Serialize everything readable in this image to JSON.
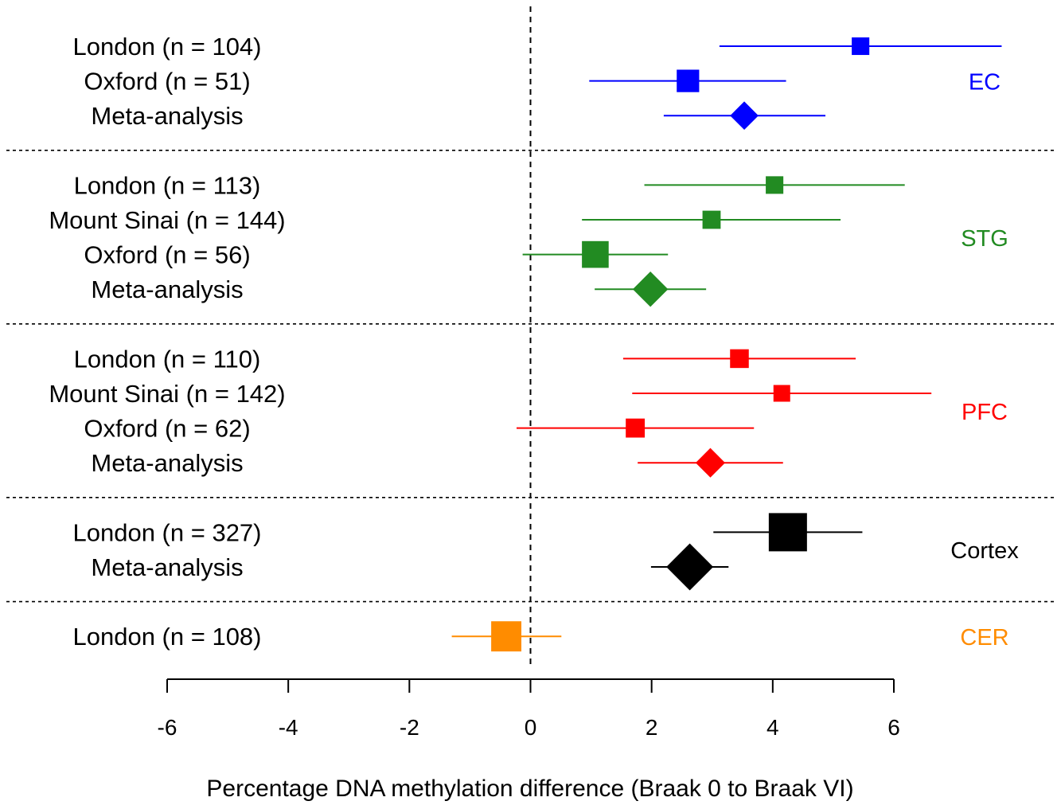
{
  "chart_data": {
    "type": "forest",
    "xlabel": "Percentage DNA methylation difference (Braak 0 to Braak VI)",
    "xlim": [
      -6,
      6
    ],
    "xticks": [
      "-6",
      "-4",
      "-2",
      "0",
      "2",
      "4",
      "6"
    ],
    "reference_line": 0,
    "groups": [
      {
        "region": "EC",
        "color": "#0000ff",
        "rows": [
          {
            "label": "London (n = 104)",
            "estimate": 5.45,
            "lower": 3.12,
            "upper": 7.78,
            "marker": "square",
            "weight": 0.28
          },
          {
            "label": "Oxford (n = 51)",
            "estimate": 2.6,
            "lower": 0.97,
            "upper": 4.22,
            "marker": "square",
            "weight": 0.45
          },
          {
            "label": "Meta-analysis",
            "estimate": 3.53,
            "lower": 2.2,
            "upper": 4.87,
            "marker": "diamond",
            "weight": 0.4
          }
        ]
      },
      {
        "region": "STG",
        "color": "#228b22",
        "rows": [
          {
            "label": "London (n = 113)",
            "estimate": 4.03,
            "lower": 1.88,
            "upper": 6.18,
            "marker": "square",
            "weight": 0.28
          },
          {
            "label": "Mount Sinai (n = 144)",
            "estimate": 2.99,
            "lower": 0.85,
            "upper": 5.12,
            "marker": "square",
            "weight": 0.3
          },
          {
            "label": "Oxford (n = 56)",
            "estimate": 1.07,
            "lower": -0.13,
            "upper": 2.27,
            "marker": "square",
            "weight": 0.6
          },
          {
            "label": "Meta-analysis",
            "estimate": 1.98,
            "lower": 1.06,
            "upper": 2.9,
            "marker": "diamond",
            "weight": 0.58
          }
        ]
      },
      {
        "region": "PFC",
        "color": "#ff0000",
        "rows": [
          {
            "label": "London (n = 110)",
            "estimate": 3.45,
            "lower": 1.53,
            "upper": 5.37,
            "marker": "square",
            "weight": 0.32
          },
          {
            "label": "Mount Sinai (n = 142)",
            "estimate": 4.15,
            "lower": 1.68,
            "upper": 6.62,
            "marker": "square",
            "weight": 0.25
          },
          {
            "label": "Oxford (n = 62)",
            "estimate": 1.73,
            "lower": -0.23,
            "upper": 3.69,
            "marker": "square",
            "weight": 0.33
          },
          {
            "label": "Meta-analysis",
            "estimate": 2.97,
            "lower": 1.77,
            "upper": 4.17,
            "marker": "diamond",
            "weight": 0.43
          }
        ]
      },
      {
        "region": "Cortex",
        "color": "#000000",
        "rows": [
          {
            "label": "London (n = 327)",
            "estimate": 4.25,
            "lower": 3.02,
            "upper": 5.48,
            "marker": "square",
            "weight": 1.0
          },
          {
            "label": "Meta-analysis",
            "estimate": 2.63,
            "lower": 1.99,
            "upper": 3.27,
            "marker": "diamond",
            "weight": 0.88
          }
        ]
      },
      {
        "region": "CER",
        "color": "#ff8c00",
        "rows": [
          {
            "label": "London (n = 108)",
            "estimate": -0.4,
            "lower": -1.3,
            "upper": 0.51,
            "marker": "square",
            "weight": 0.72
          }
        ]
      }
    ]
  }
}
